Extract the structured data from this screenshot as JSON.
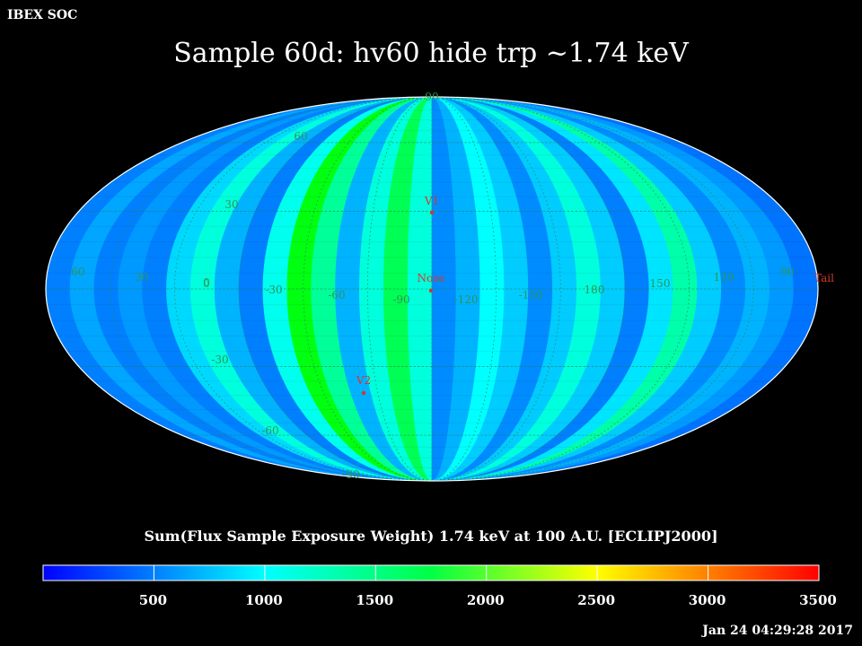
{
  "header": {
    "organization": "IBEX SOC",
    "title": "Sample 60d: hv60 hide trp ~1.74 keV"
  },
  "map": {
    "projection": "Mollweide (Aitoff-style) all-sky",
    "background": "#000000",
    "grid_line_color": "#2a8a52",
    "label_color": "#2e9457",
    "marker_color": "#d03a2a",
    "latitude_labels": [
      {
        "text": "90",
        "lat": 90
      },
      {
        "text": "60",
        "lat": 60
      },
      {
        "text": "30",
        "lat": 30
      },
      {
        "text": "0",
        "lat": 0
      },
      {
        "text": "-30",
        "lat": -30
      },
      {
        "text": "-60",
        "lat": -60
      },
      {
        "text": "-90",
        "lat": -90
      }
    ],
    "longitude_labels": [
      "60",
      "30",
      "0",
      "-30",
      "-60",
      "-90",
      "-120",
      "-150",
      "180",
      "150",
      "120",
      "90"
    ],
    "markers": [
      {
        "label": "V1",
        "lon": 0,
        "lat": 38
      },
      {
        "label": "Nose",
        "lon": 0,
        "lat": -5
      },
      {
        "label": "V2",
        "lon": -18,
        "lat": -54
      },
      {
        "label": "Tail",
        "lon": 180,
        "lat": 0
      }
    ],
    "band_levels": [
      500,
      650,
      500,
      600,
      500,
      850,
      1100,
      700,
      500,
      1050,
      1700,
      1300,
      700,
      1100,
      1500,
      1100,
      550,
      700,
      1000,
      800,
      550,
      800,
      1100,
      800,
      500,
      900,
      1250,
      800,
      550,
      700,
      600,
      450
    ]
  },
  "colorbar": {
    "title": "Sum(Flux Sample Exposure Weight)  1.74 keV at 100 A.U. [ECLIPJ2000]",
    "min": 0,
    "max": 3500,
    "ticks": [
      "500",
      "1000",
      "1500",
      "2000",
      "2500",
      "3000",
      "3500"
    ],
    "stops": [
      "#0000ff",
      "#00ffff",
      "#00ff00",
      "#ffff00",
      "#ff0000"
    ]
  },
  "footer": {
    "timestamp": "Jan 24 04:29:28 2017"
  }
}
